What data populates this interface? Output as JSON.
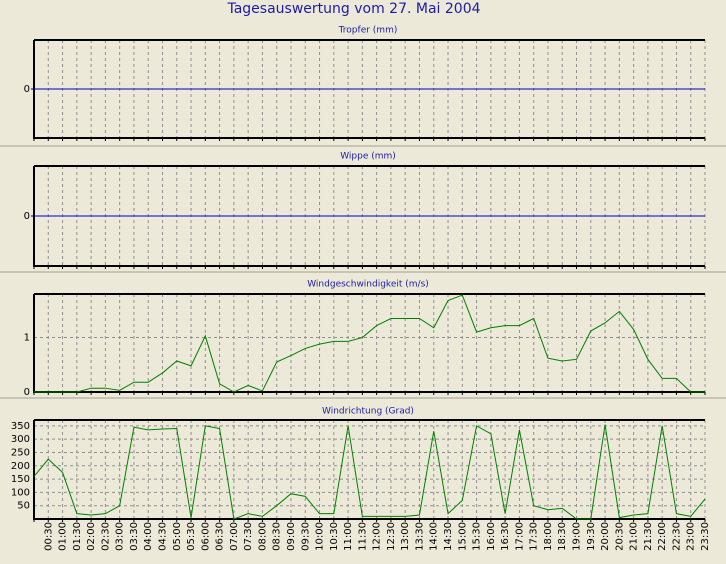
{
  "title": "Tagesauswertung vom 27. Mai 2004",
  "chart_data": [
    {
      "type": "line",
      "title": "Tropfer (mm)",
      "ylim": [
        -1,
        1
      ],
      "yticks": [
        0
      ],
      "grid": false,
      "series": [
        {
          "color": "#0000c8",
          "values": [
            0,
            0,
            0,
            0,
            0,
            0,
            0,
            0,
            0,
            0,
            0,
            0,
            0,
            0,
            0,
            0,
            0,
            0,
            0,
            0,
            0,
            0,
            0,
            0,
            0,
            0,
            0,
            0,
            0,
            0,
            0,
            0,
            0,
            0,
            0,
            0,
            0,
            0,
            0,
            0,
            0,
            0,
            0,
            0,
            0,
            0,
            0,
            0
          ]
        }
      ]
    },
    {
      "type": "line",
      "title": "Wippe (mm)",
      "ylim": [
        -1,
        1
      ],
      "yticks": [
        0
      ],
      "grid": false,
      "series": [
        {
          "color": "#0000c8",
          "values": [
            0,
            0,
            0,
            0,
            0,
            0,
            0,
            0,
            0,
            0,
            0,
            0,
            0,
            0,
            0,
            0,
            0,
            0,
            0,
            0,
            0,
            0,
            0,
            0,
            0,
            0,
            0,
            0,
            0,
            0,
            0,
            0,
            0,
            0,
            0,
            0,
            0,
            0,
            0,
            0,
            0,
            0,
            0,
            0,
            0,
            0,
            0,
            0
          ]
        }
      ]
    },
    {
      "type": "line",
      "title": "Windgeschwindigkeit (m/s)",
      "ylim": [
        0,
        1.8
      ],
      "yticks": [
        0,
        1
      ],
      "grid": true,
      "series": [
        {
          "color": "#008000",
          "values": [
            0,
            0,
            0,
            0,
            0.07,
            0.07,
            0.03,
            0.18,
            0.18,
            0.35,
            0.57,
            0.48,
            1.03,
            0.15,
            0,
            0.12,
            0.02,
            0.55,
            0.67,
            0.8,
            0.88,
            0.93,
            0.93,
            1.0,
            1.22,
            1.35,
            1.35,
            1.35,
            1.18,
            1.68,
            1.78,
            1.1,
            1.18,
            1.22,
            1.22,
            1.35,
            0.62,
            0.57,
            0.6,
            1.12,
            1.27,
            1.48,
            1.15,
            0.6,
            0.25,
            0.25,
            0,
            0
          ]
        }
      ]
    },
    {
      "type": "line",
      "title": "Windrichtung (Grad)",
      "ylim": [
        0,
        372
      ],
      "yticks": [
        50,
        100,
        150,
        200,
        250,
        300,
        350
      ],
      "grid": true,
      "categories": [
        null,
        "00:30",
        "01:00",
        "01:30",
        "02:00",
        "02:30",
        "03:00",
        "03:30",
        "04:00",
        "04:30",
        "05:00",
        "05:30",
        "06:00",
        "06:30",
        "07:00",
        "07:30",
        "08:00",
        "08:30",
        "09:00",
        "09:30",
        "10:00",
        "10:30",
        "11:00",
        "11:30",
        "12:00",
        "12:30",
        "13:00",
        "13:30",
        "14:00",
        "14:30",
        "15:00",
        "15:30",
        "16:00",
        "16:30",
        "17:00",
        "17:30",
        "18:00",
        "18:30",
        "19:00",
        "19:30",
        "20:00",
        "20:30",
        "21:00",
        "21:30",
        "22:00",
        "22:30",
        "23:00",
        "23:30"
      ],
      "series": [
        {
          "color": "#008000",
          "values": [
            160,
            225,
            175,
            20,
            15,
            20,
            50,
            345,
            335,
            338,
            340,
            5,
            350,
            340,
            0,
            20,
            10,
            50,
            95,
            85,
            20,
            20,
            350,
            10,
            10,
            10,
            10,
            15,
            330,
            20,
            70,
            350,
            320,
            20,
            335,
            50,
            35,
            40,
            0,
            0,
            355,
            5,
            15,
            20,
            350,
            20,
            10,
            75
          ]
        }
      ]
    }
  ]
}
